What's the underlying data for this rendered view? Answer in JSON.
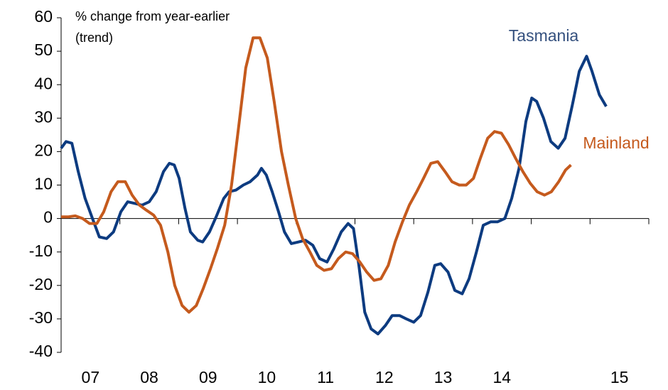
{
  "chart_data": {
    "type": "line",
    "axis_label": [
      "% change from year-earlier",
      "(trend)"
    ],
    "xlim": [
      0,
      120
    ],
    "x_minor_ticks": [
      0,
      12,
      24,
      36,
      48,
      60,
      72,
      84,
      96,
      108,
      120
    ],
    "xticks": [
      {
        "value": 6,
        "label": "07"
      },
      {
        "value": 18,
        "label": "08"
      },
      {
        "value": 30,
        "label": "09"
      },
      {
        "value": 42,
        "label": "10"
      },
      {
        "value": 54,
        "label": "11"
      },
      {
        "value": 66,
        "label": "12"
      },
      {
        "value": 78,
        "label": "13"
      },
      {
        "value": 90,
        "label": "14"
      },
      {
        "value": 114,
        "label": "15"
      }
    ],
    "ylim": [
      -40,
      60
    ],
    "yticks": [
      -40,
      -30,
      -20,
      -10,
      0,
      10,
      20,
      30,
      40,
      50,
      60
    ],
    "series": [
      {
        "name": "Tasmania",
        "color": "#0d3b80",
        "label_color": "#34507e",
        "x": [
          0,
          1.0,
          2.2,
          3.5,
          4.9,
          6.4,
          7.8,
          9.3,
          10.7,
          12.2,
          13.6,
          15.1,
          16.5,
          18.0,
          19.4,
          20.9,
          22.1,
          23.1,
          24.1,
          25.3,
          26.4,
          27.9,
          28.9,
          30.3,
          31.8,
          33.2,
          34.3,
          35.7,
          37.2,
          38.6,
          40.1,
          40.9,
          41.9,
          43.1,
          44.4,
          45.6,
          47.0,
          48.5,
          49.9,
          51.4,
          52.8,
          54.3,
          55.7,
          57.2,
          58.6,
          59.7,
          60.8,
          62.0,
          63.3,
          64.7,
          66.2,
          67.6,
          69.1,
          70.5,
          72.0,
          73.4,
          74.9,
          76.3,
          77.5,
          79.0,
          80.4,
          81.9,
          83.3,
          84.8,
          86.2,
          87.7,
          89.1,
          90.6,
          92.0,
          93.5,
          94.9,
          96.1,
          97.1,
          98.5,
          100.0,
          101.5,
          102.9,
          104.4,
          105.8,
          107.3,
          108.4,
          109.9,
          111.3
        ],
        "values": [
          21,
          23,
          22.5,
          14,
          6,
          0,
          -5.5,
          -6,
          -4,
          2,
          5,
          4.5,
          4,
          5,
          8,
          14,
          16.5,
          16,
          12,
          3,
          -4,
          -6.5,
          -7,
          -4,
          1,
          6,
          8,
          8.5,
          10,
          11,
          13,
          15,
          13,
          8,
          2,
          -4,
          -7.5,
          -7,
          -6.5,
          -8,
          -12,
          -13,
          -9,
          -4,
          -1.5,
          -3,
          -14,
          -28,
          -33,
          -34.5,
          -32,
          -29,
          -29,
          -30,
          -31,
          -29,
          -22,
          -14,
          -13.5,
          -16,
          -21.5,
          -22.5,
          -18,
          -10,
          -2,
          -1,
          -1,
          0,
          6,
          15,
          29,
          36,
          35,
          30,
          23,
          21,
          24,
          34,
          44,
          48.5,
          44,
          37,
          33.5
        ]
      },
      {
        "name": "Mainland",
        "color": "#c55a1d",
        "label_color": "#c55a1d",
        "x": [
          0,
          1.5,
          2.9,
          4.4,
          5.8,
          7.3,
          8.7,
          10.2,
          11.6,
          13.1,
          14.5,
          16.0,
          17.4,
          18.9,
          20.3,
          21.8,
          23.2,
          24.7,
          26.1,
          27.6,
          29.0,
          30.5,
          31.9,
          33.4,
          34.8,
          36.3,
          37.7,
          39.2,
          40.6,
          42.1,
          43.5,
          45.0,
          46.4,
          47.9,
          49.3,
          50.8,
          52.2,
          53.7,
          55.2,
          56.6,
          58.1,
          59.5,
          61.0,
          62.4,
          63.9,
          65.3,
          66.8,
          68.2,
          69.7,
          71.1,
          72.6,
          74.0,
          75.5,
          76.9,
          78.4,
          79.8,
          81.3,
          82.7,
          84.2,
          85.6,
          87.1,
          88.5,
          89.9,
          91.4,
          92.8,
          94.3,
          95.8,
          97.2,
          98.7,
          100.1,
          101.6,
          103.0,
          104.1
        ],
        "values": [
          0.5,
          0.5,
          0.8,
          0,
          -1.5,
          -1.5,
          2,
          8,
          11,
          11,
          7,
          4,
          2.5,
          1,
          -2,
          -10,
          -20,
          -26,
          -28,
          -26,
          -21,
          -15,
          -9,
          -2,
          10,
          28,
          45,
          54,
          54,
          48,
          35,
          20,
          10,
          0,
          -6,
          -10,
          -14,
          -15.5,
          -15,
          -12,
          -10,
          -10.5,
          -13,
          -16,
          -18.5,
          -18,
          -14,
          -7,
          -1,
          4,
          8,
          12,
          16.5,
          17,
          14,
          11,
          10,
          10,
          12,
          18,
          24,
          26,
          25.5,
          22,
          18,
          14,
          10.5,
          8,
          7,
          8,
          11,
          14.5,
          16
        ]
      }
    ]
  }
}
